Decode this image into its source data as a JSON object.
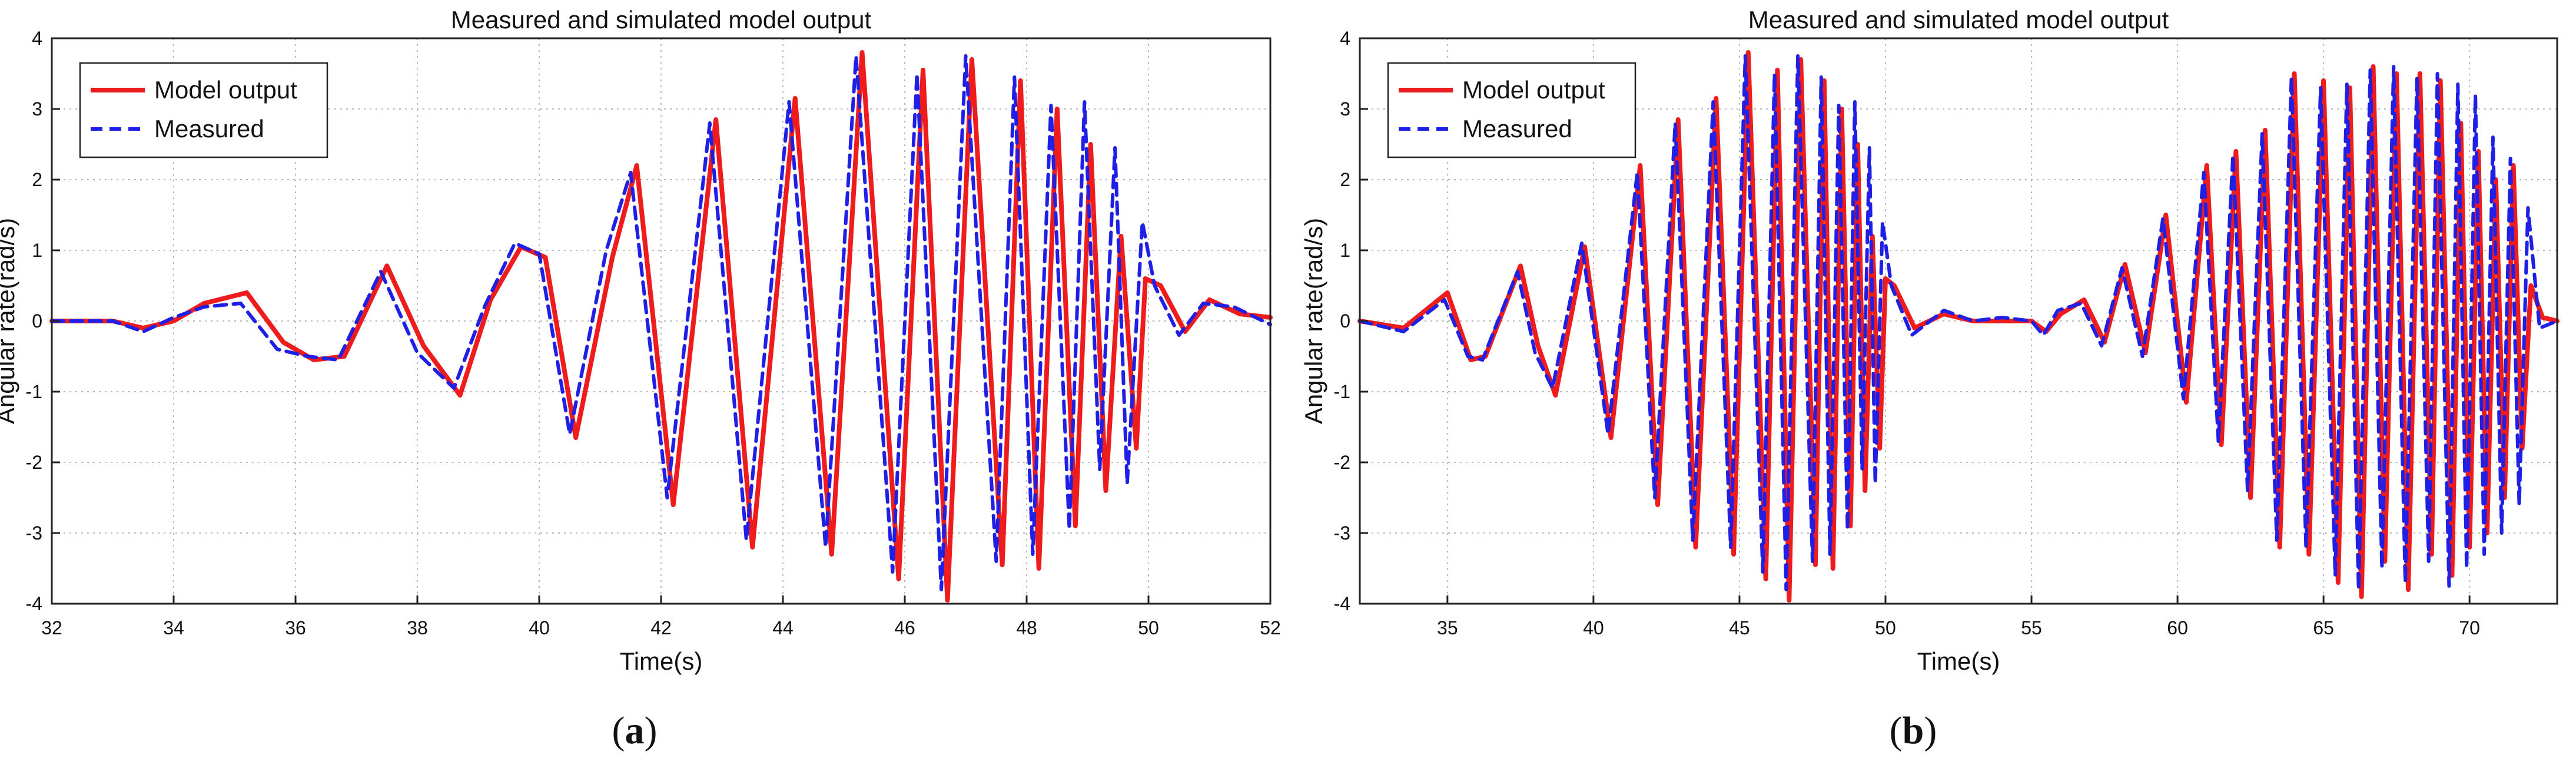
{
  "panels": [
    {
      "caption_open": "(",
      "caption_letter": "a",
      "caption_close": ")"
    },
    {
      "caption_open": "(",
      "caption_letter": "b",
      "caption_close": ")"
    }
  ],
  "colors": {
    "model": "#ee1c1c",
    "measured": "#1f1fe6",
    "grid": "#b8b8b8",
    "axis": "#222222"
  },
  "chart_data": [
    {
      "type": "line",
      "title": "Measured and simulated model output",
      "xlabel": "Time(s)",
      "ylabel": "Angular rate(rad/s)",
      "xlim": [
        32,
        52
      ],
      "ylim": [
        -4,
        4
      ],
      "xticks": [
        32,
        34,
        36,
        38,
        40,
        42,
        44,
        46,
        48,
        50,
        52
      ],
      "yticks": [
        -4,
        -3,
        -2,
        -1,
        0,
        1,
        2,
        3,
        4
      ],
      "grid": true,
      "legend_position": "top-left",
      "legend": [
        "Model output",
        "Measured"
      ],
      "series": [
        {
          "name": "Model output",
          "style": "solid",
          "x": [
            32,
            33,
            33.5,
            34,
            34.5,
            35.2,
            35.8,
            36.3,
            36.8,
            37.5,
            38.1,
            38.7,
            39.2,
            39.7,
            40.1,
            40.6,
            41.2,
            41.6,
            42.2,
            42.9,
            43.5,
            44.2,
            44.8,
            45.3,
            45.9,
            46.3,
            46.7,
            47.1,
            47.6,
            47.9,
            48.2,
            48.5,
            48.8,
            49.05,
            49.3,
            49.55,
            49.8,
            49.95,
            50.2,
            50.6,
            51.0,
            51.5,
            52
          ],
          "y": [
            0,
            0,
            -0.1,
            0.0,
            0.25,
            0.4,
            -0.3,
            -0.55,
            -0.5,
            0.78,
            -0.35,
            -1.05,
            0.3,
            1.05,
            0.9,
            -1.65,
            0.9,
            2.2,
            -2.6,
            2.85,
            -3.2,
            3.15,
            -3.3,
            3.8,
            -3.65,
            3.55,
            -3.95,
            3.7,
            -3.45,
            3.4,
            -3.5,
            3.0,
            -2.9,
            2.5,
            -2.4,
            1.2,
            -1.8,
            0.6,
            0.5,
            -0.15,
            0.3,
            0.1,
            0.05
          ]
        },
        {
          "name": "Measured",
          "style": "dashed",
          "x": [
            32,
            33,
            33.5,
            34,
            34.5,
            35.1,
            35.7,
            36.2,
            36.7,
            37.4,
            38.0,
            38.6,
            39.1,
            39.6,
            40.0,
            40.5,
            41.1,
            41.5,
            42.1,
            42.8,
            43.4,
            44.1,
            44.7,
            45.2,
            45.8,
            46.2,
            46.6,
            47.0,
            47.5,
            47.8,
            48.1,
            48.4,
            48.7,
            48.95,
            49.2,
            49.45,
            49.65,
            49.9,
            50.1,
            50.5,
            50.9,
            51.4,
            52
          ],
          "y": [
            0,
            0,
            -0.15,
            0.05,
            0.2,
            0.25,
            -0.4,
            -0.5,
            -0.55,
            0.7,
            -0.45,
            -0.95,
            0.2,
            1.1,
            0.95,
            -1.6,
            1.0,
            2.1,
            -2.5,
            2.8,
            -3.1,
            3.1,
            -3.2,
            3.75,
            -3.55,
            3.5,
            -3.8,
            3.75,
            -3.4,
            3.45,
            -3.3,
            3.05,
            -2.95,
            3.1,
            -2.1,
            2.45,
            -2.3,
            1.4,
            0.5,
            -0.2,
            0.25,
            0.2,
            -0.05
          ]
        }
      ]
    },
    {
      "type": "line",
      "title": "Measured and simulated model output",
      "xlabel": "Time(s)",
      "ylabel": "Angular rate(rad/s)",
      "xlim": [
        32,
        73
      ],
      "ylim": [
        -4,
        4
      ],
      "xticks": [
        35,
        40,
        45,
        50,
        55,
        60,
        65,
        70
      ],
      "yticks": [
        -4,
        -3,
        -2,
        -1,
        0,
        1,
        2,
        3,
        4
      ],
      "grid": true,
      "legend_position": "top-left",
      "legend": [
        "Model output",
        "Measured"
      ],
      "series": [
        {
          "name": "Model output",
          "style": "solid",
          "x": [
            32,
            33.5,
            35,
            35.8,
            36.3,
            37.5,
            38.1,
            38.7,
            39.7,
            40.6,
            41.6,
            42.2,
            42.9,
            43.5,
            44.2,
            44.8,
            45.3,
            45.9,
            46.3,
            46.7,
            47.1,
            47.6,
            47.9,
            48.2,
            48.5,
            48.8,
            49.05,
            49.3,
            49.55,
            49.8,
            50.0,
            50.3,
            51,
            52,
            53,
            54,
            55,
            55.5,
            56,
            56.8,
            57.5,
            58.2,
            58.9,
            59.6,
            60.3,
            61.0,
            61.5,
            62.0,
            62.5,
            63.0,
            63.5,
            64.0,
            64.5,
            65.0,
            65.5,
            65.9,
            66.3,
            66.7,
            67.1,
            67.5,
            67.9,
            68.3,
            68.7,
            69.0,
            69.4,
            69.7,
            70.0,
            70.3,
            70.6,
            70.9,
            71.2,
            71.5,
            71.8,
            72.1,
            72.5,
            73
          ],
          "y": [
            0,
            -0.1,
            0.4,
            -0.55,
            -0.5,
            0.78,
            -0.35,
            -1.05,
            1.05,
            -1.65,
            2.2,
            -2.6,
            2.85,
            -3.2,
            3.15,
            -3.3,
            3.8,
            -3.65,
            3.55,
            -3.95,
            3.7,
            -3.45,
            3.4,
            -3.5,
            3.0,
            -2.9,
            2.5,
            -2.4,
            1.2,
            -1.8,
            0.6,
            0.5,
            -0.1,
            0.1,
            0,
            0,
            0,
            -0.15,
            0.1,
            0.3,
            -0.3,
            0.8,
            -0.45,
            1.5,
            -1.15,
            2.2,
            -1.75,
            2.4,
            -2.5,
            2.7,
            -3.2,
            3.5,
            -3.3,
            3.4,
            -3.7,
            3.3,
            -3.9,
            3.6,
            -3.4,
            3.5,
            -3.8,
            3.5,
            -3.3,
            3.4,
            -3.6,
            2.8,
            -3.2,
            2.4,
            -3.0,
            2.0,
            -2.5,
            2.2,
            -1.8,
            0.5,
            0.05,
            0
          ]
        },
        {
          "name": "Measured",
          "style": "dashed",
          "x": [
            32,
            33.5,
            34.9,
            35.7,
            36.2,
            37.4,
            38.0,
            38.6,
            39.6,
            40.5,
            41.5,
            42.1,
            42.8,
            43.4,
            44.1,
            44.7,
            45.2,
            45.8,
            46.2,
            46.6,
            47.0,
            47.5,
            47.8,
            48.1,
            48.4,
            48.7,
            48.95,
            49.2,
            49.45,
            49.65,
            49.9,
            50.2,
            50.9,
            52,
            53,
            54,
            55,
            55.4,
            55.9,
            56.7,
            57.4,
            58.1,
            58.8,
            59.5,
            60.2,
            60.9,
            61.4,
            61.9,
            62.4,
            62.9,
            63.4,
            63.9,
            64.4,
            64.9,
            65.4,
            65.8,
            66.2,
            66.6,
            67.0,
            67.4,
            67.8,
            68.2,
            68.6,
            68.9,
            69.3,
            69.6,
            69.9,
            70.2,
            70.5,
            70.8,
            71.1,
            71.4,
            71.7,
            72.0,
            72.4,
            73
          ],
          "y": [
            0,
            -0.15,
            0.3,
            -0.5,
            -0.55,
            0.7,
            -0.45,
            -0.95,
            1.1,
            -1.6,
            2.1,
            -2.5,
            2.8,
            -3.1,
            3.1,
            -3.2,
            3.75,
            -3.55,
            3.5,
            -3.8,
            3.75,
            -3.4,
            3.45,
            -3.3,
            3.05,
            -2.95,
            3.1,
            -2.1,
            2.45,
            -2.3,
            1.4,
            0.5,
            -0.2,
            0.15,
            0,
            0.05,
            0,
            -0.2,
            0.15,
            0.25,
            -0.35,
            0.75,
            -0.5,
            1.45,
            -1.1,
            2.1,
            -1.7,
            2.35,
            -2.4,
            2.65,
            -3.1,
            3.45,
            -3.2,
            3.3,
            -3.6,
            3.35,
            -3.8,
            3.55,
            -3.5,
            3.6,
            -3.7,
            3.45,
            -3.4,
            3.5,
            -3.75,
            3.35,
            -3.5,
            3.2,
            -3.3,
            2.6,
            -3.0,
            2.3,
            -2.6,
            1.6,
            -0.1,
            0
          ]
        }
      ]
    }
  ]
}
